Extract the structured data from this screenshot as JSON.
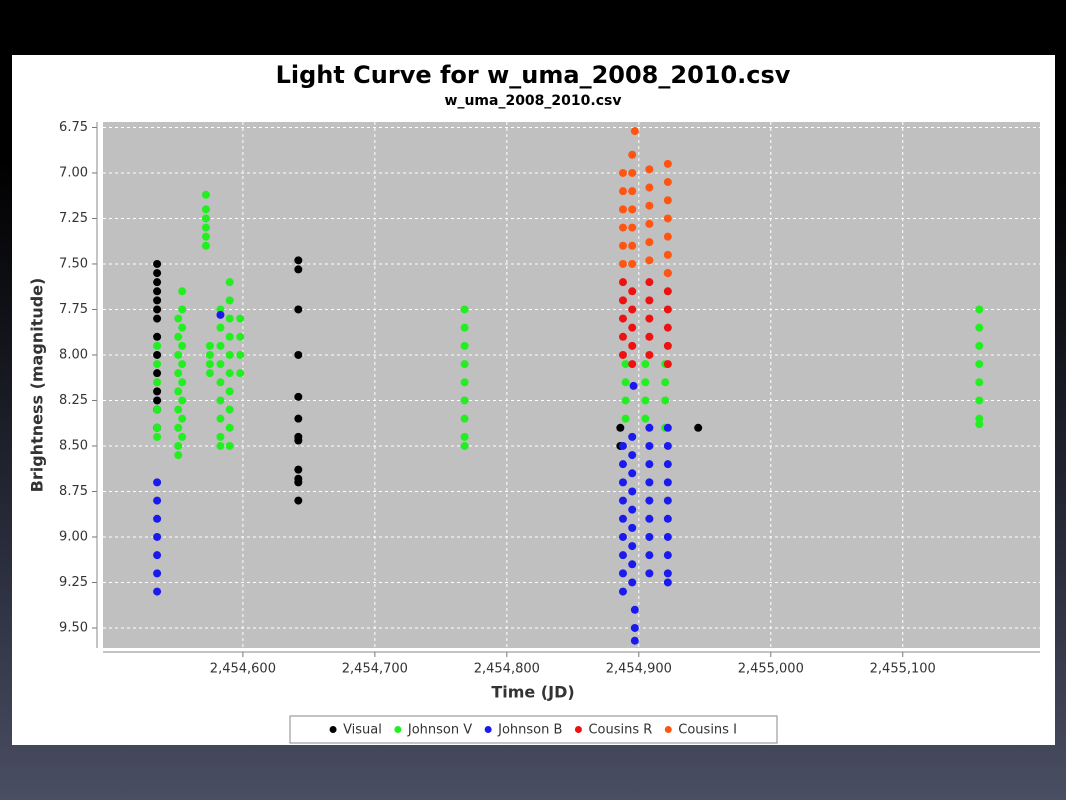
{
  "chart_data": {
    "type": "scatter",
    "title": "Light Curve for w_uma_2008_2010.csv",
    "subtitle": "w_uma_2008_2010.csv",
    "x_label": "Time (JD)",
    "y_label": "Brightness (magnitude)",
    "xlim": [
      2454494,
      2455204
    ],
    "ylim": [
      6.72,
      9.61
    ],
    "y_inverted": true,
    "grid": true,
    "legend": "bottom",
    "xticks": [
      {
        "value": 2454600,
        "label": "2,454,600"
      },
      {
        "value": 2454700,
        "label": "2,454,700"
      },
      {
        "value": 2454800,
        "label": "2,454,800"
      },
      {
        "value": 2454900,
        "label": "2,454,900"
      },
      {
        "value": 2455000,
        "label": "2,455,000"
      },
      {
        "value": 2455100,
        "label": "2,455,100"
      }
    ],
    "yticks": [
      6.75,
      {
        "value": 7,
        "label": "7.00"
      },
      7.25,
      {
        "value": 7.5,
        "label": "7.50"
      },
      7.75,
      {
        "value": 8,
        "label": "8.00"
      },
      8.25,
      {
        "value": 8.5,
        "label": "8.50"
      },
      8.75,
      {
        "value": 9,
        "label": "9.00"
      },
      9.25,
      {
        "value": 9.5,
        "label": "9.50"
      }
    ],
    "series": [
      {
        "name": "Visual",
        "color": "#000000",
        "x": [
          2454535,
          2454535,
          2454535,
          2454535,
          2454535,
          2454535,
          2454535,
          2454535,
          2454535,
          2454535,
          2454535,
          2454535,
          2454535,
          2454535,
          2454642,
          2454642,
          2454642,
          2454642,
          2454642,
          2454642,
          2454642,
          2454642,
          2454642,
          2454642,
          2454642,
          2454642,
          2454886,
          2454886,
          2454945
        ],
        "values": [
          7.5,
          7.55,
          7.6,
          7.65,
          7.7,
          7.75,
          7.8,
          7.9,
          8.0,
          8.1,
          8.2,
          8.25,
          8.3,
          8.4,
          7.48,
          7.53,
          7.75,
          8.0,
          8.23,
          8.35,
          8.45,
          8.47,
          8.63,
          8.68,
          8.7,
          8.8,
          8.4,
          8.5,
          8.4
        ]
      },
      {
        "name": "Johnson V",
        "color": "#22ee22",
        "x": [
          2454535,
          2454535,
          2454535,
          2454535,
          2454535,
          2454535,
          2454551,
          2454551,
          2454551,
          2454551,
          2454551,
          2454551,
          2454551,
          2454551,
          2454551,
          2454554,
          2454554,
          2454554,
          2454554,
          2454554,
          2454554,
          2454554,
          2454554,
          2454554,
          2454572,
          2454572,
          2454572,
          2454572,
          2454572,
          2454572,
          2454575,
          2454575,
          2454575,
          2454575,
          2454583,
          2454583,
          2454583,
          2454583,
          2454583,
          2454583,
          2454583,
          2454583,
          2454583,
          2454590,
          2454590,
          2454590,
          2454590,
          2454590,
          2454590,
          2454590,
          2454590,
          2454590,
          2454590,
          2454598,
          2454598,
          2454598,
          2454598,
          2454768,
          2454768,
          2454768,
          2454768,
          2454768,
          2454768,
          2454768,
          2454768,
          2454768,
          2454890,
          2454890,
          2454890,
          2454890,
          2454905,
          2454905,
          2454905,
          2454905,
          2454920,
          2454920,
          2454920,
          2454920,
          2455158,
          2455158,
          2455158,
          2455158,
          2455158,
          2455158,
          2455158,
          2455158
        ],
        "values": [
          7.95,
          8.05,
          8.15,
          8.3,
          8.4,
          8.45,
          7.8,
          7.9,
          8.0,
          8.1,
          8.2,
          8.3,
          8.4,
          8.5,
          8.55,
          7.65,
          7.75,
          7.85,
          7.95,
          8.05,
          8.15,
          8.25,
          8.35,
          8.45,
          7.12,
          7.2,
          7.25,
          7.3,
          7.35,
          7.4,
          7.95,
          8.0,
          8.05,
          8.1,
          7.75,
          7.85,
          7.95,
          8.05,
          8.15,
          8.25,
          8.35,
          8.45,
          8.5,
          7.6,
          7.7,
          7.8,
          7.9,
          8.0,
          8.1,
          8.2,
          8.3,
          8.4,
          8.5,
          7.8,
          7.9,
          8.0,
          8.1,
          7.75,
          7.85,
          7.95,
          8.05,
          8.15,
          8.25,
          8.35,
          8.45,
          8.5,
          8.05,
          8.15,
          8.25,
          8.35,
          8.05,
          8.15,
          8.25,
          8.35,
          8.05,
          8.15,
          8.25,
          8.4,
          7.75,
          7.85,
          7.95,
          8.05,
          8.15,
          8.25,
          8.35,
          8.38
        ]
      },
      {
        "name": "Johnson B",
        "color": "#1a1aee",
        "x": [
          2454535,
          2454535,
          2454535,
          2454535,
          2454535,
          2454535,
          2454535,
          2454583,
          2454888,
          2454888,
          2454888,
          2454888,
          2454888,
          2454888,
          2454888,
          2454888,
          2454888,
          2454895,
          2454895,
          2454895,
          2454895,
          2454895,
          2454895,
          2454895,
          2454895,
          2454895,
          2454897,
          2454897,
          2454897,
          2454896,
          2454908,
          2454908,
          2454908,
          2454908,
          2454908,
          2454908,
          2454908,
          2454908,
          2454908,
          2454922,
          2454922,
          2454922,
          2454922,
          2454922,
          2454922,
          2454922,
          2454922,
          2454922,
          2454922
        ],
        "values": [
          8.7,
          8.8,
          8.9,
          9.0,
          9.1,
          9.2,
          9.3,
          7.78,
          8.5,
          8.6,
          8.7,
          8.8,
          8.9,
          9.0,
          9.1,
          9.2,
          9.3,
          8.45,
          8.55,
          8.65,
          8.75,
          8.85,
          8.95,
          9.05,
          9.15,
          9.25,
          9.4,
          9.5,
          9.57,
          8.17,
          8.4,
          8.5,
          8.6,
          8.7,
          8.8,
          8.9,
          9.0,
          9.1,
          9.2,
          8.4,
          8.5,
          8.6,
          8.7,
          8.8,
          8.9,
          9.0,
          9.1,
          9.2,
          9.25
        ]
      },
      {
        "name": "Cousins R",
        "color": "#ee1111",
        "x": [
          2454888,
          2454888,
          2454888,
          2454888,
          2454888,
          2454895,
          2454895,
          2454895,
          2454895,
          2454895,
          2454908,
          2454908,
          2454908,
          2454908,
          2454908,
          2454922,
          2454922,
          2454922,
          2454922,
          2454922,
          2454922
        ],
        "values": [
          7.6,
          7.7,
          7.8,
          7.9,
          8.0,
          7.65,
          7.75,
          7.85,
          7.95,
          8.05,
          7.6,
          7.7,
          7.8,
          7.9,
          8.0,
          7.55,
          7.65,
          7.75,
          7.85,
          7.95,
          8.05
        ]
      },
      {
        "name": "Cousins I",
        "color": "#ff5511",
        "x": [
          2454888,
          2454888,
          2454888,
          2454888,
          2454888,
          2454888,
          2454895,
          2454895,
          2454895,
          2454895,
          2454895,
          2454895,
          2454895,
          2454897,
          2454908,
          2454908,
          2454908,
          2454908,
          2454908,
          2454908,
          2454922,
          2454922,
          2454922,
          2454922,
          2454922,
          2454922,
          2454922
        ],
        "values": [
          7.0,
          7.1,
          7.2,
          7.3,
          7.4,
          7.5,
          6.9,
          7.0,
          7.1,
          7.2,
          7.3,
          7.4,
          7.5,
          6.77,
          6.98,
          7.08,
          7.18,
          7.28,
          7.38,
          7.48,
          6.95,
          7.05,
          7.15,
          7.25,
          7.35,
          7.45,
          7.55
        ]
      }
    ]
  }
}
